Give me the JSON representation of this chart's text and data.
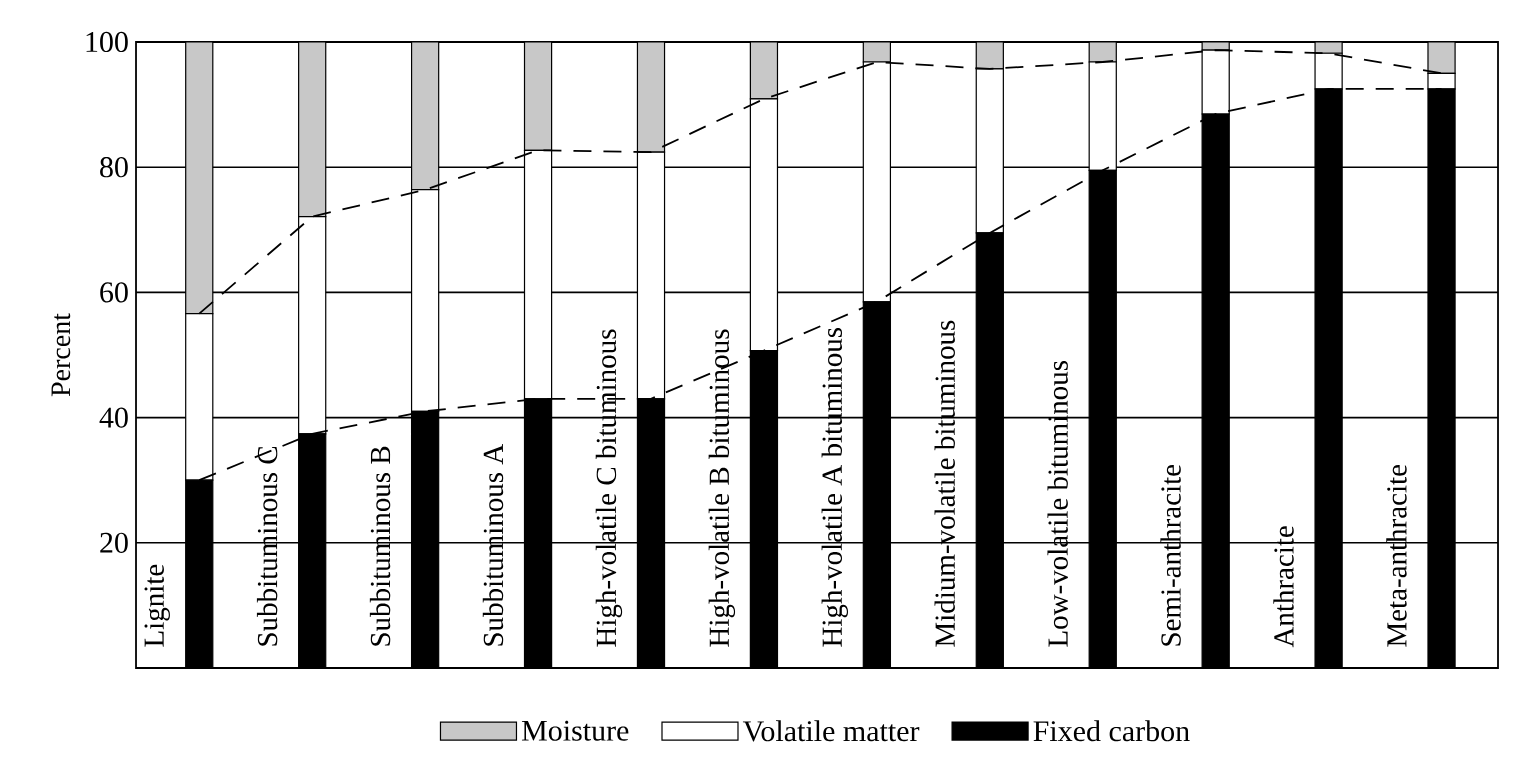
{
  "chart_data": {
    "type": "bar",
    "stacked": true,
    "ylabel": "Percent",
    "categories": [
      "Lignite",
      "Subbituminous C",
      "Subbituminous B",
      "Subbituminous A",
      "High-volatile C bituminous",
      "High-volatile B bituminous",
      "High-volatile A bituminous",
      "Midium-volatile bituminous",
      "Low-volatile bituminous",
      "Semi-anthracite",
      "Anthracite",
      "Meta-anthracite"
    ],
    "series": [
      {
        "name": "Fixed carbon",
        "color": "#000000",
        "values": [
          30.0,
          37.4,
          41.0,
          43.0,
          43.0,
          50.7,
          58.5,
          69.5,
          79.5,
          88.5,
          92.5,
          92.5
        ]
      },
      {
        "name": "Volatile matter",
        "color": "#ffffff",
        "values": [
          26.6,
          34.7,
          35.4,
          39.7,
          39.4,
          40.2,
          38.3,
          26.2,
          17.3,
          10.2,
          5.7,
          2.5
        ]
      },
      {
        "name": "Moisture",
        "color": "#c8c8c8",
        "values": [
          43.4,
          27.9,
          23.6,
          17.3,
          17.6,
          9.1,
          3.2,
          4.3,
          3.2,
          1.3,
          1.8,
          5.0
        ]
      },
      {
        "type": "line",
        "color": "#000000",
        "line_style": "dashed",
        "values": [
          30.0,
          37.4,
          41.0,
          43.0,
          43.0,
          50.7,
          58.5,
          69.5,
          79.5,
          88.5,
          92.5,
          92.5
        ]
      },
      {
        "type": "line",
        "color": "#000000",
        "line_style": "dashed",
        "values": [
          56.6,
          72.1,
          76.4,
          82.7,
          82.4,
          90.9,
          96.8,
          95.7,
          96.8,
          98.7,
          98.2,
          95.0
        ]
      }
    ],
    "ylim": [
      0,
      100
    ],
    "yticks": [
      20,
      40,
      60,
      80,
      100
    ],
    "grid": "y",
    "legend": "bottom"
  }
}
